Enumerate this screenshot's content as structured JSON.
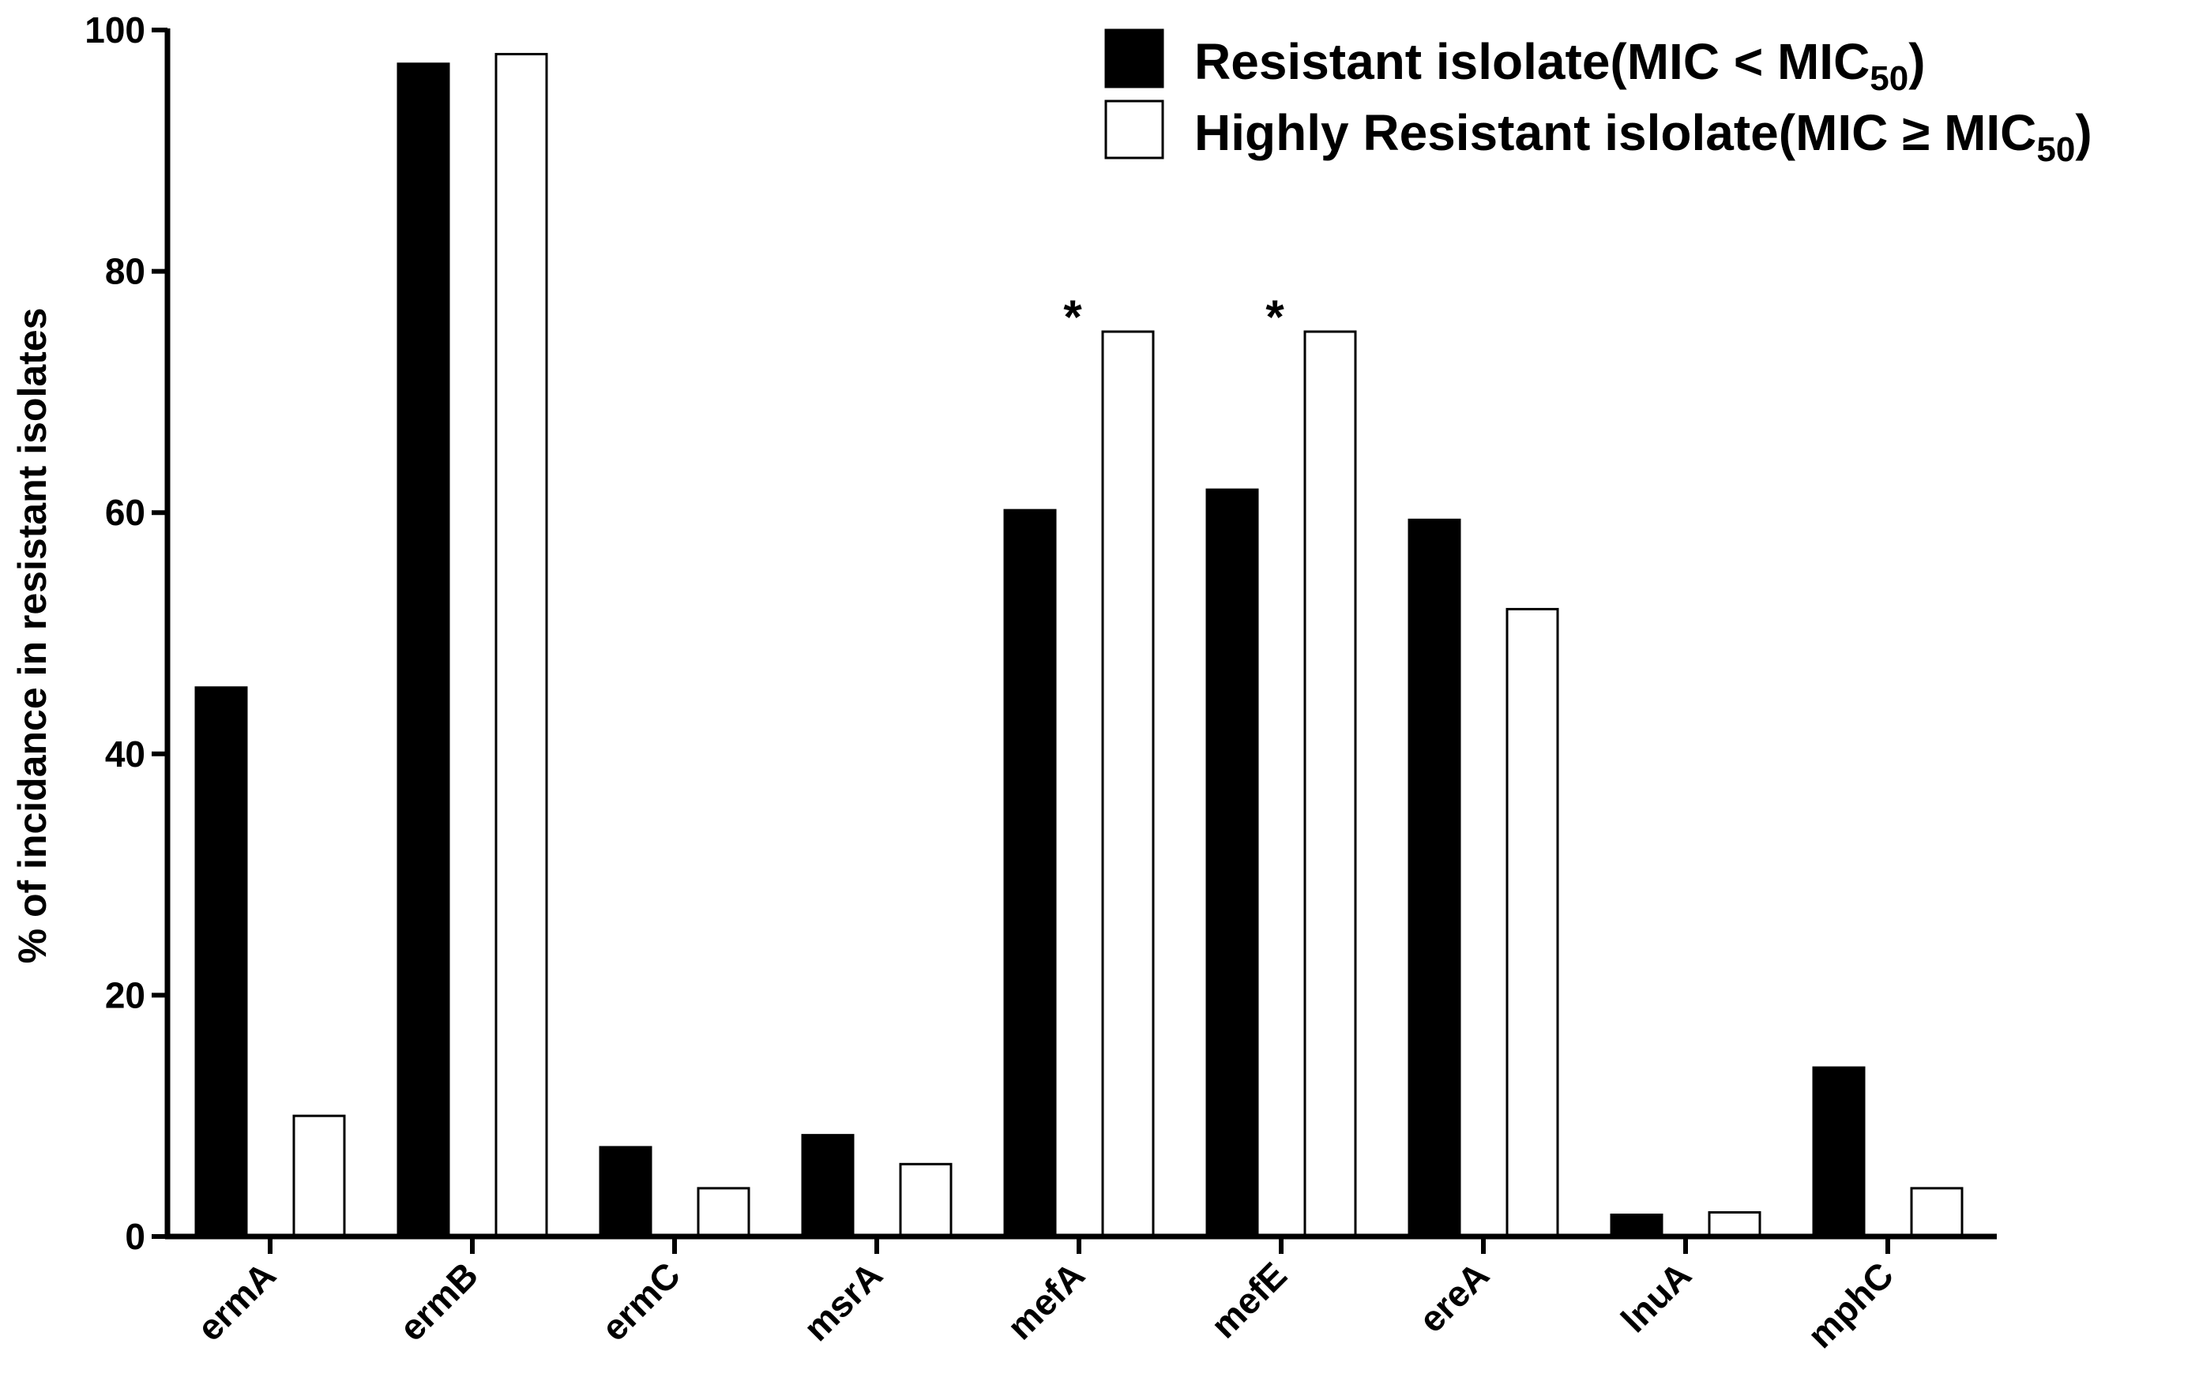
{
  "chart_data": {
    "type": "bar",
    "title": "",
    "xlabel": "",
    "ylabel": "% of incidance in resistant isolates",
    "ylim": [
      0,
      100
    ],
    "yticks": [
      0,
      20,
      40,
      60,
      80,
      100
    ],
    "categories": [
      "ermA",
      "ermB",
      "ermC",
      "msrA",
      "mefA",
      "mefE",
      "ereA",
      "lnuA",
      "mphC"
    ],
    "series": [
      {
        "name": "Resistant islolate(MIC < MIC50)",
        "legend_main": "Resistant islolate(MIC < MIC",
        "legend_sub": "50",
        "legend_close": ")",
        "fill": "#000000",
        "values": [
          45.5,
          97.2,
          7.4,
          8.4,
          60.2,
          61.9,
          59.4,
          1.8,
          14.0
        ]
      },
      {
        "name": "Highly Resistant islolate(MIC ≥ MIC50)",
        "legend_main": "Highly Resistant islolate(MIC ≥ MIC",
        "legend_sub": "50",
        "legend_close": ")",
        "fill": "#ffffff",
        "values": [
          10.0,
          98.0,
          4.0,
          6.0,
          75.0,
          75.0,
          52.0,
          2.0,
          4.0
        ]
      }
    ],
    "annotations": [
      {
        "category": "mefA",
        "series": 1,
        "text": "*"
      },
      {
        "category": "mefE",
        "series": 1,
        "text": "*"
      }
    ],
    "legend_position": "top-right",
    "grid": false
  }
}
